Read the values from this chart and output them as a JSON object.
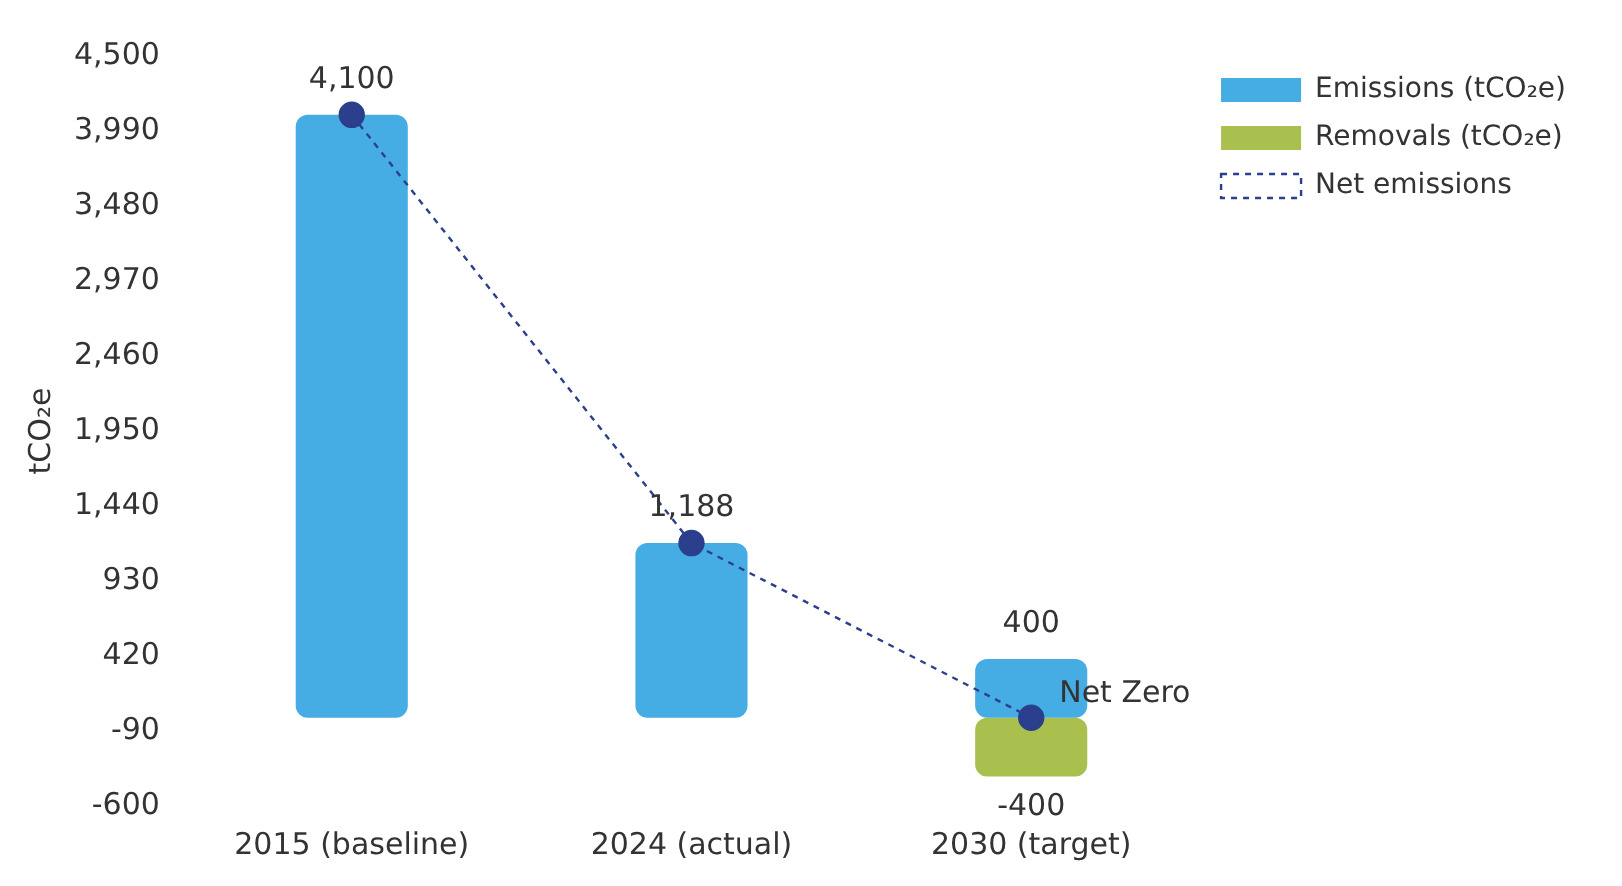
{
  "chart_data": {
    "type": "bar",
    "stacked": true,
    "ylabel": "tCO₂e",
    "categories": [
      "2015 (baseline)",
      "2024 (actual)",
      "2030 (target)"
    ],
    "series": [
      {
        "name": "Emissions (tCO₂e)",
        "color": "#45ade3",
        "values": [
          4100,
          1188,
          400
        ],
        "value_labels": [
          "4,100",
          "1,188",
          "400"
        ]
      },
      {
        "name": "Removals (tCO₂e)",
        "color": "#a9c04f",
        "values": [
          null,
          null,
          -400
        ],
        "value_labels": [
          null,
          null,
          "-400"
        ]
      },
      {
        "name": "Net emissions",
        "type": "line",
        "color": "#2b3f8c",
        "values": [
          4100,
          1188,
          0
        ],
        "marker": "circle",
        "line_style": "dashed"
      }
    ],
    "ylim": [
      -600,
      4500
    ],
    "yticks": [
      -600,
      -90,
      420,
      930,
      {
        "value": 1440,
        "label": "1,440"
      },
      {
        "value": 1950,
        "label": "1,950"
      },
      {
        "value": 2460,
        "label": "2,460"
      },
      {
        "value": 2970,
        "label": "2,970"
      },
      {
        "value": 3480,
        "label": "3,480"
      },
      {
        "value": 3990,
        "label": "3,990"
      },
      {
        "value": 4500,
        "label": "4,500"
      }
    ],
    "grid": false,
    "legend": "top right",
    "annotations": [
      {
        "text": "Net Zero",
        "x": "2030 (target)",
        "y": 0
      }
    ]
  }
}
